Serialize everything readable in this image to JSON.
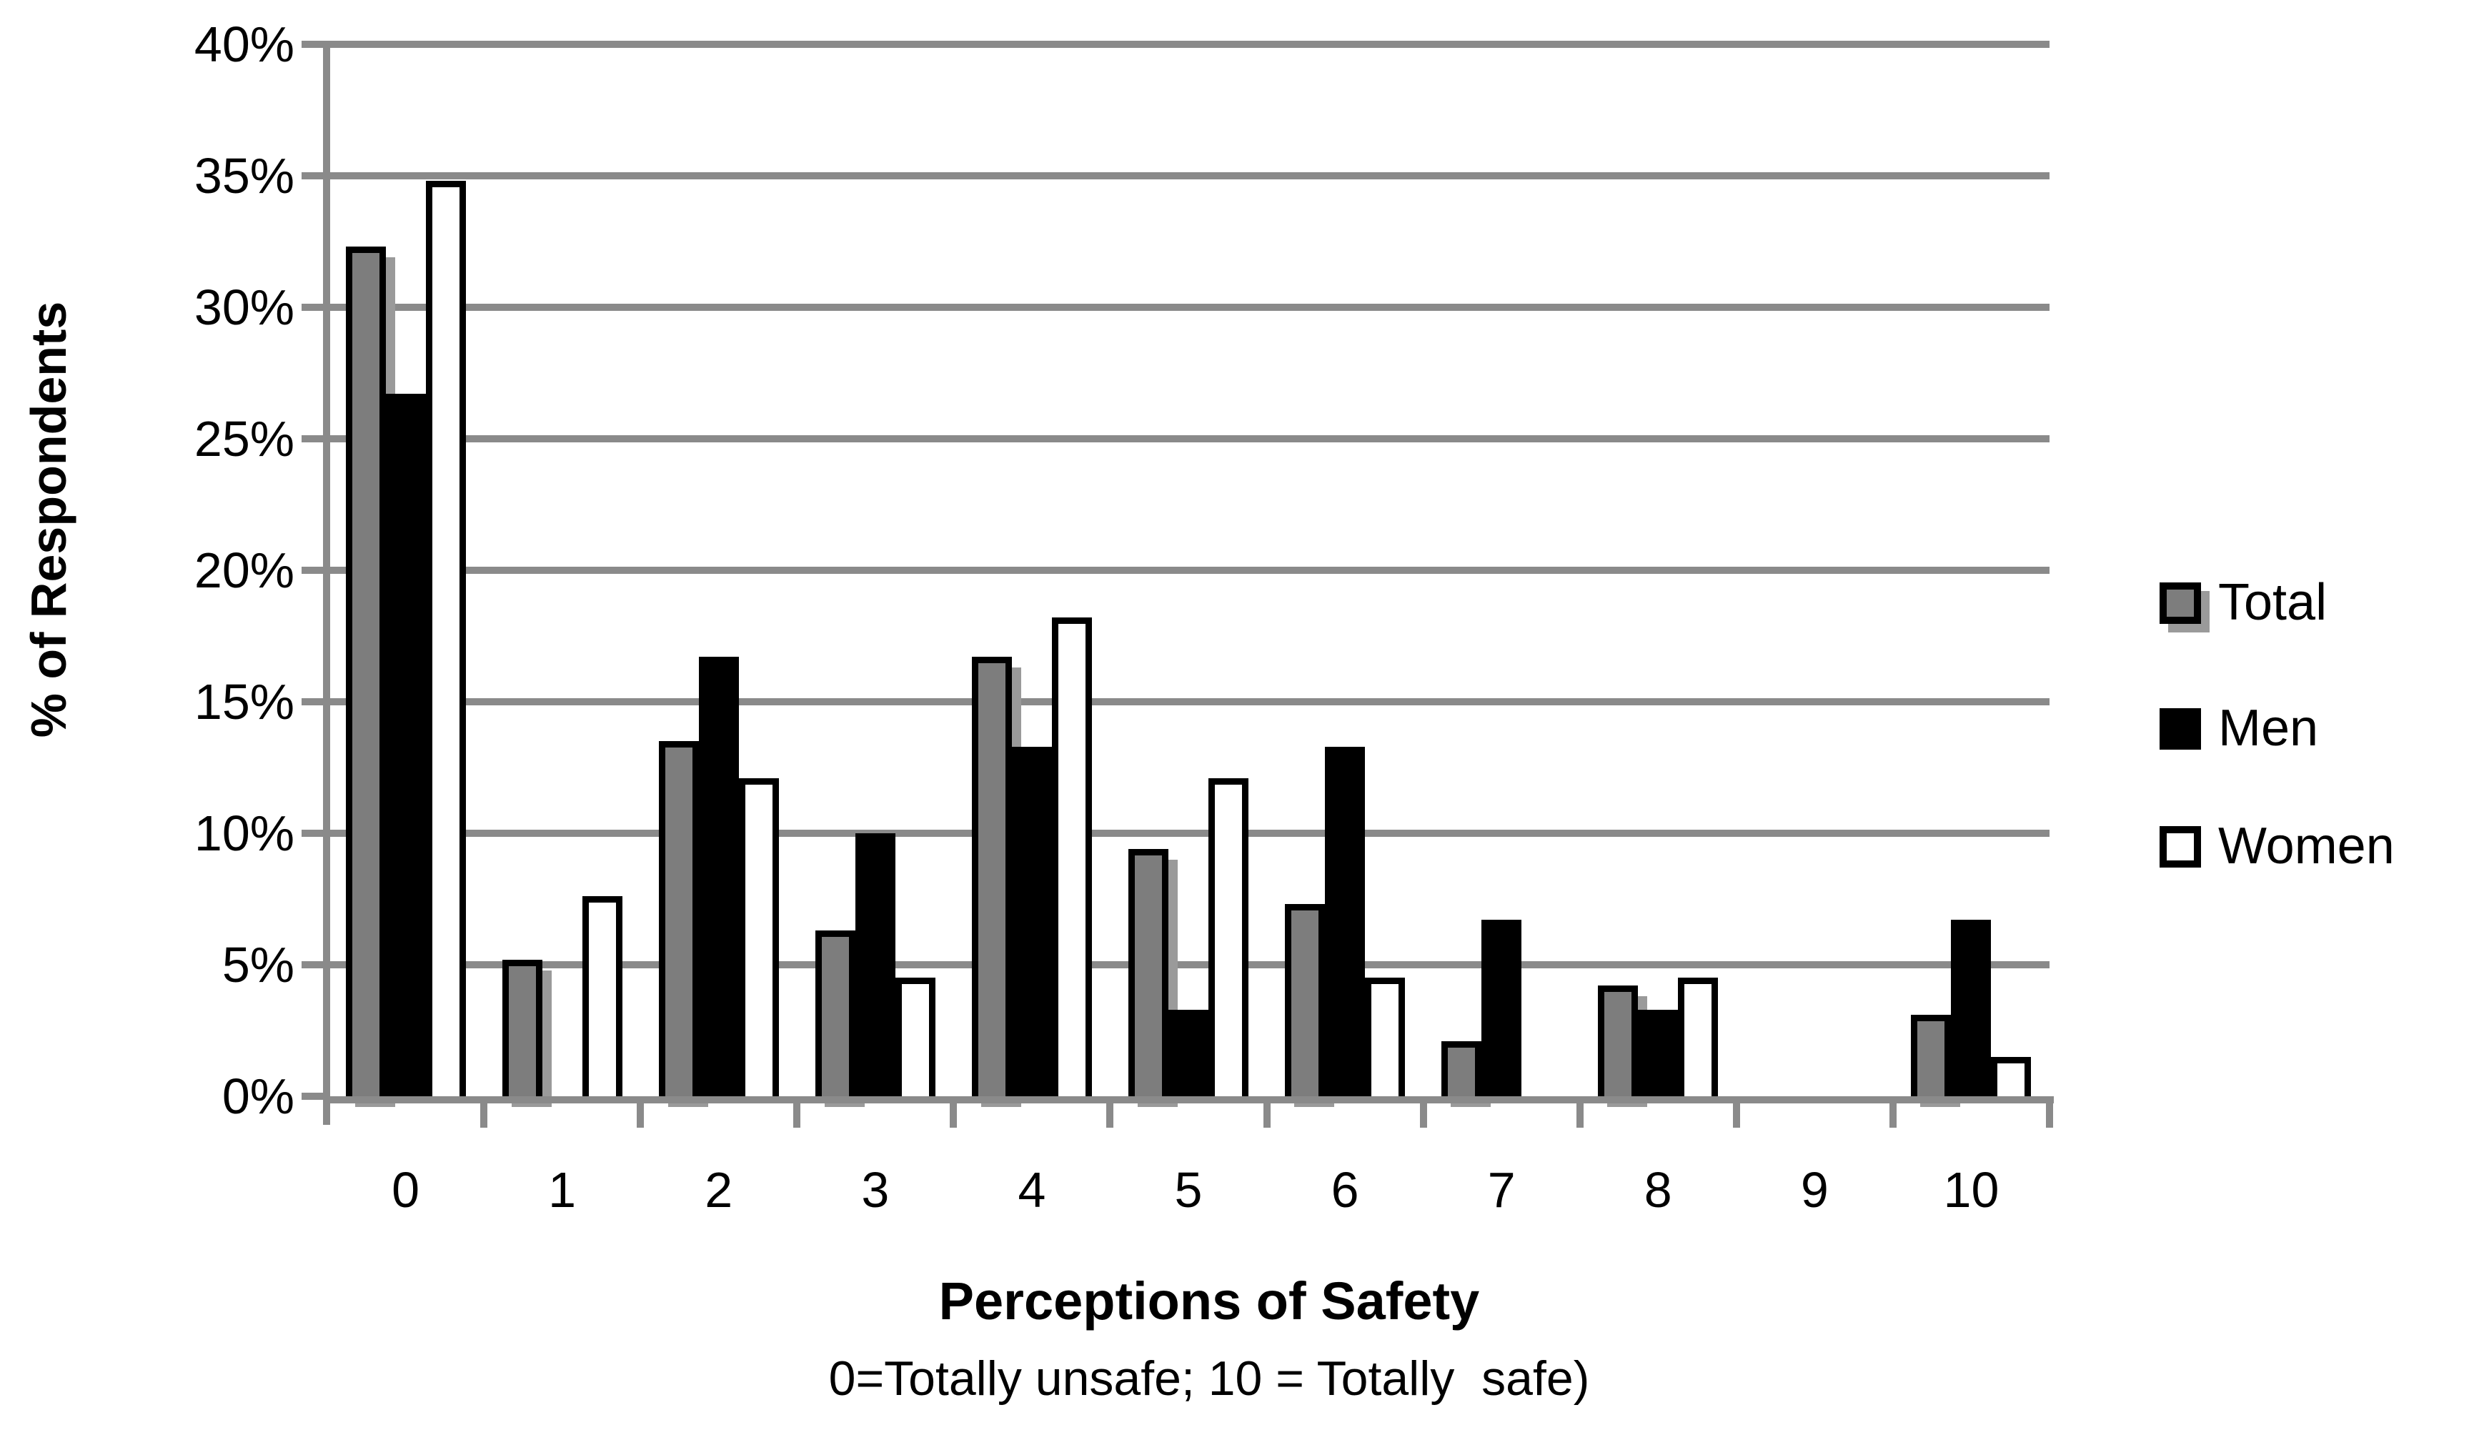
{
  "chart_data": {
    "type": "bar",
    "categories": [
      "0",
      "1",
      "2",
      "3",
      "4",
      "5",
      "6",
      "7",
      "8",
      "9",
      "10"
    ],
    "series": [
      {
        "name": "Total",
        "color": "#7d7d7d",
        "shadow": true,
        "values": [
          32.3,
          5.2,
          13.5,
          6.3,
          16.7,
          9.4,
          7.3,
          2.1,
          4.2,
          0,
          3.1
        ]
      },
      {
        "name": "Men",
        "color": "#000000",
        "shadow": false,
        "values": [
          26.7,
          0,
          16.7,
          10.0,
          13.3,
          3.3,
          13.3,
          6.7,
          3.3,
          0,
          6.7
        ]
      },
      {
        "name": "Women",
        "color": "#ffffff",
        "shadow": false,
        "values": [
          34.8,
          7.6,
          12.1,
          4.5,
          18.2,
          12.1,
          4.5,
          0,
          4.5,
          0,
          1.5
        ]
      }
    ],
    "title": "",
    "xlabel": "Perceptions of Safety",
    "xlabel_sub": "0=Totally unsafe; 10 = Totally  safe)",
    "ylabel": "% of Respondents",
    "ylim": [
      0,
      40
    ],
    "ytick_step": 5,
    "ytick_labels": [
      "0%",
      "5%",
      "10%",
      "15%",
      "20%",
      "25%",
      "30%",
      "35%",
      "40%"
    ],
    "grid": true,
    "legend_position": "right",
    "colors": {
      "grid": "#8a8a8a",
      "axis": "#8a8a8a",
      "bar_border": "#000000",
      "shadow": "#9a9a9a",
      "background": "#ffffff",
      "text": "#000000"
    }
  }
}
